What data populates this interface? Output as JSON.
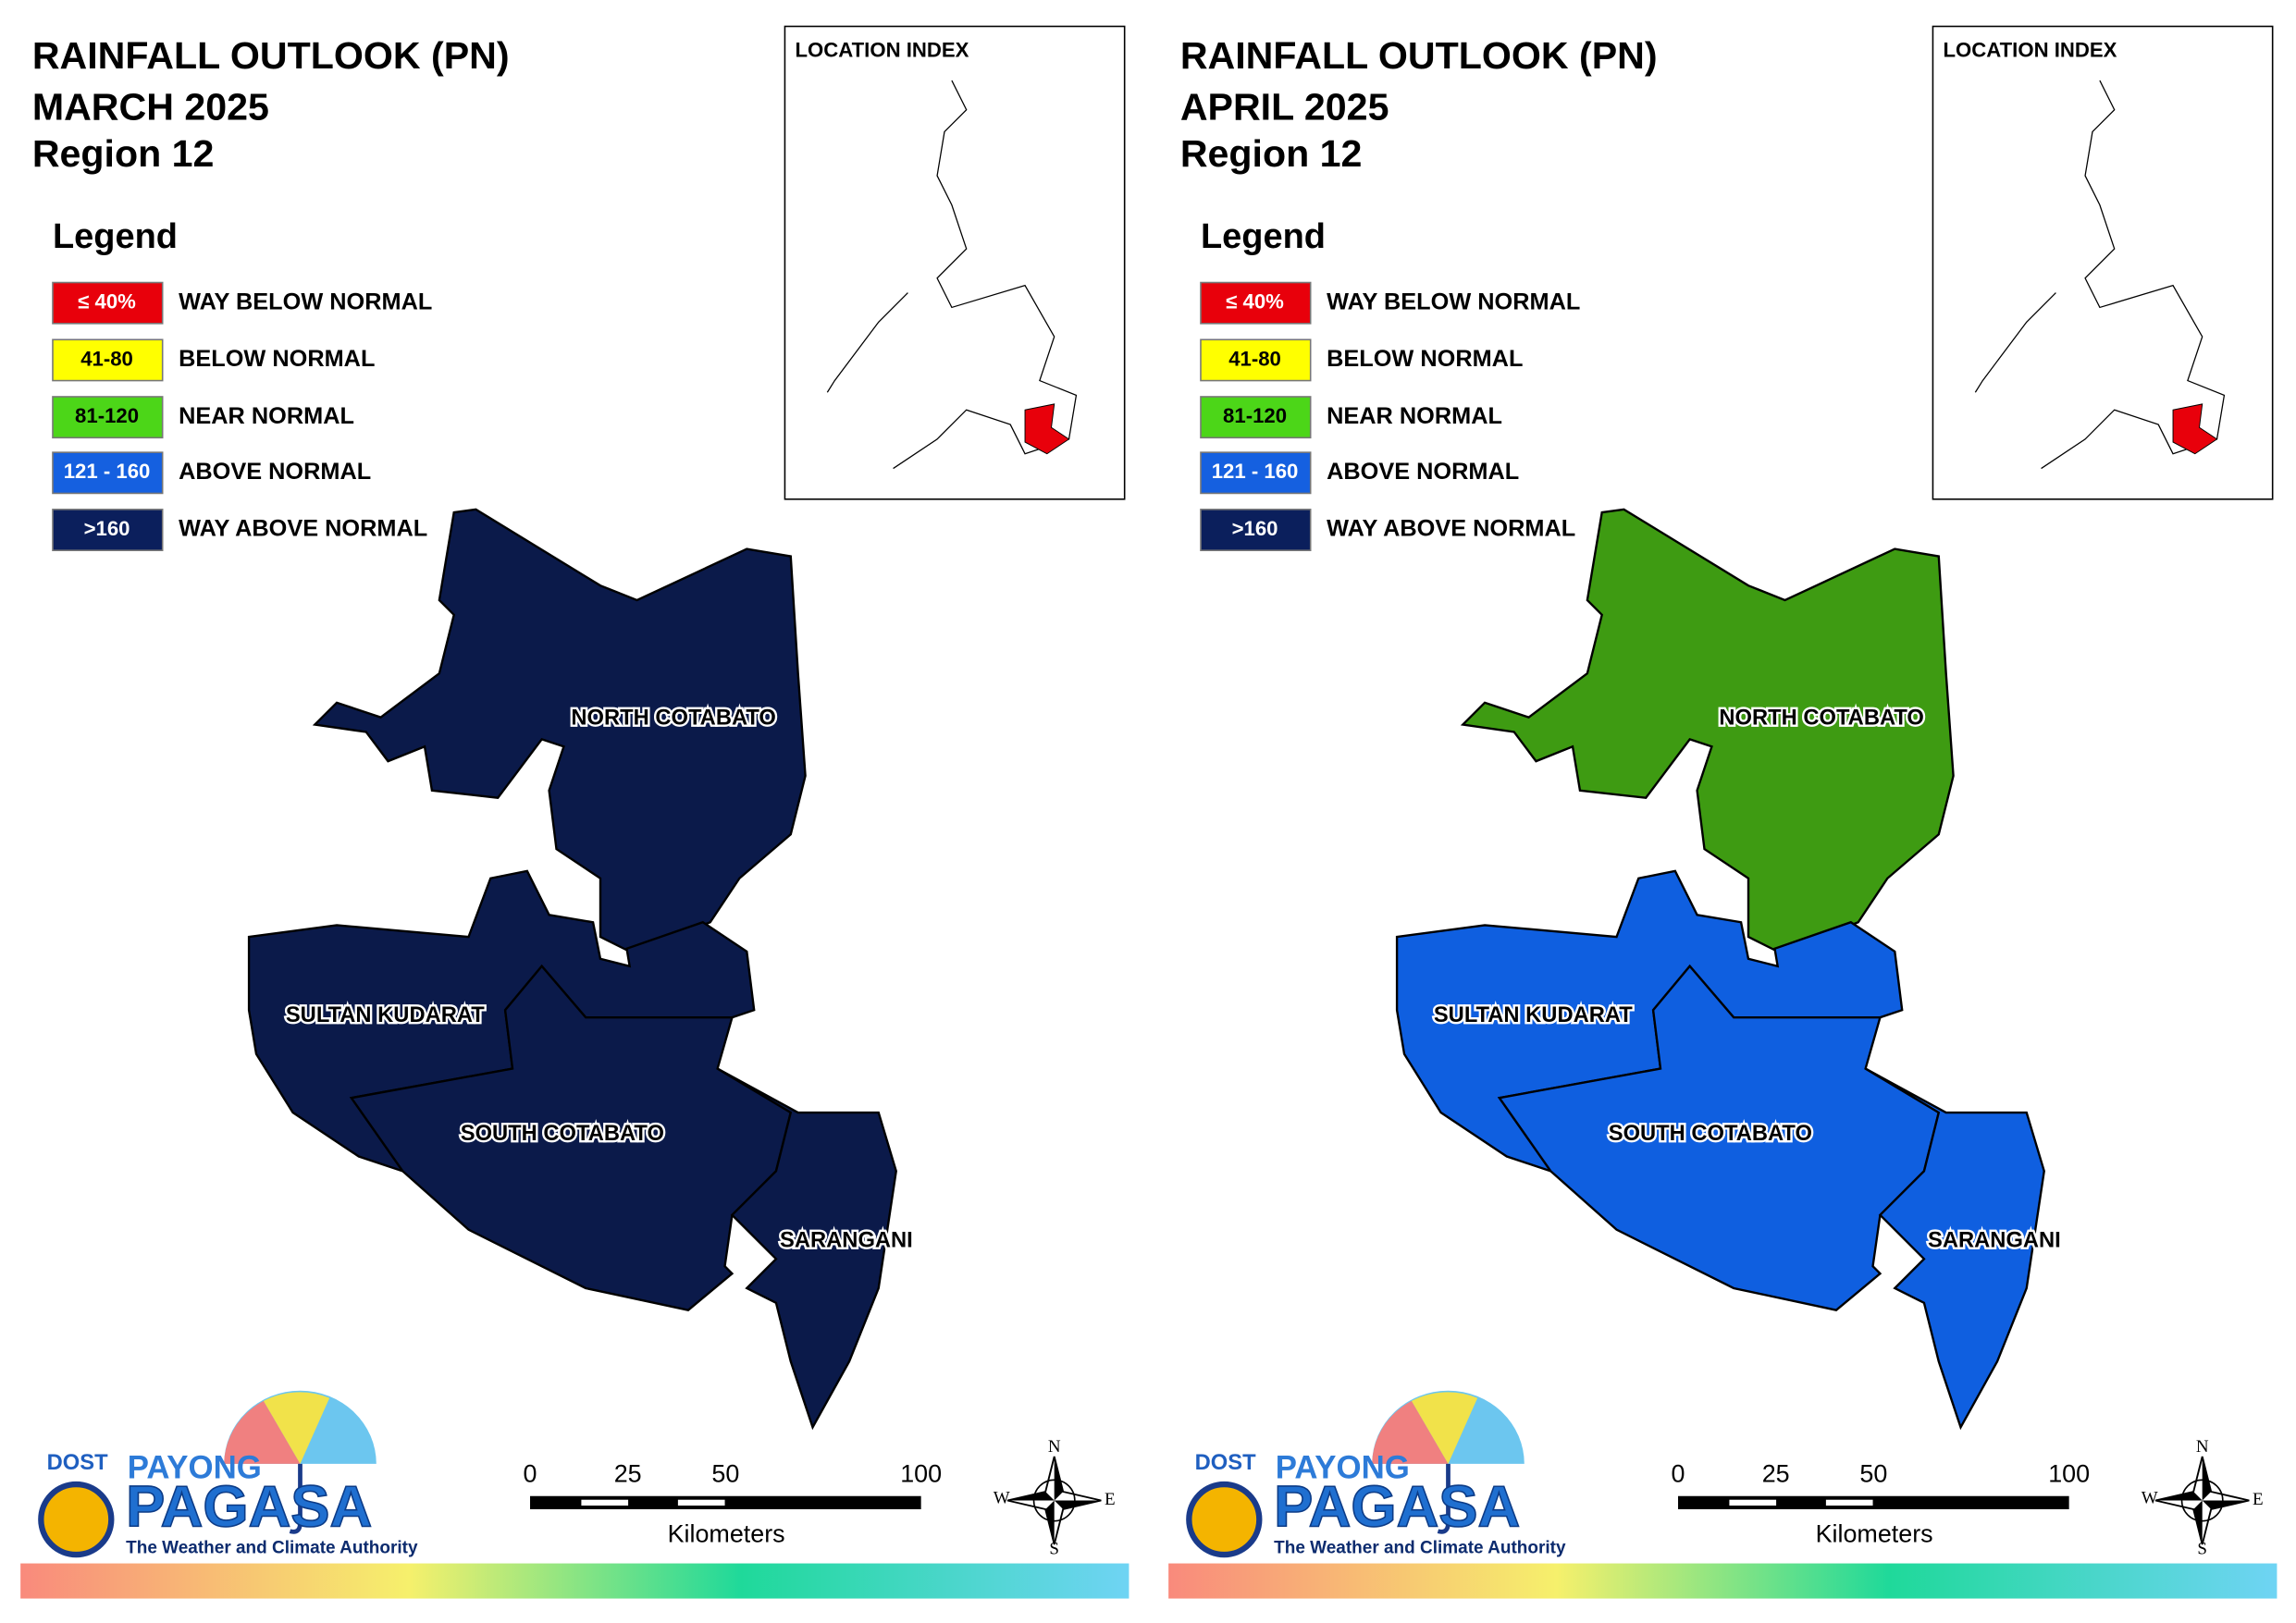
{
  "panels": [
    {
      "title": [
        "RAINFALL OUTLOOK (PN)",
        "MARCH 2025",
        "Region 12"
      ],
      "legend": {
        "title": "Legend",
        "items": [
          {
            "range": "≤ 40%",
            "label": "WAY BELOW NORMAL",
            "color": "#e8000b",
            "text_color": "#ffffff"
          },
          {
            "range": "41-80",
            "label": "BELOW NORMAL",
            "color": "#ffff00",
            "text_color": "#000000"
          },
          {
            "range": "81-120",
            "label": "NEAR NORMAL",
            "color": "#4cd618",
            "text_color": "#000000"
          },
          {
            "range": "121 - 160",
            "label": "ABOVE NORMAL",
            "color": "#1560e0",
            "text_color": "#ffffff"
          },
          {
            "range": ">160",
            "label": "WAY ABOVE NORMAL",
            "color": "#0b1f5c",
            "text_color": "#ffffff"
          }
        ]
      },
      "location_index": "LOCATION INDEX",
      "provinces": [
        {
          "name": "NORTH COTABATO",
          "color": "#0b1a4a"
        },
        {
          "name": "SULTAN KUDARAT",
          "color": "#0b1a4a"
        },
        {
          "name": "SOUTH COTABATO",
          "color": "#0b1a4a"
        },
        {
          "name": "SARANGANI",
          "color": "#0b1a4a"
        }
      ],
      "scale": {
        "ticks": [
          0,
          25,
          50,
          100
        ],
        "unit": "Kilometers"
      },
      "compass": {
        "n": "N",
        "e": "E",
        "s": "S",
        "w": "W"
      },
      "logo": {
        "agency": "DOST",
        "brand_top": "PAYONG",
        "brand": "PAGASA",
        "tagline": "The Weather and Climate Authority"
      }
    },
    {
      "title": [
        "RAINFALL OUTLOOK (PN)",
        "APRIL 2025",
        "Region 12"
      ],
      "legend": {
        "title": "Legend",
        "items": [
          {
            "range": "≤ 40%",
            "label": "WAY BELOW NORMAL",
            "color": "#e8000b",
            "text_color": "#ffffff"
          },
          {
            "range": "41-80",
            "label": "BELOW NORMAL",
            "color": "#ffff00",
            "text_color": "#000000"
          },
          {
            "range": "81-120",
            "label": "NEAR NORMAL",
            "color": "#4cd618",
            "text_color": "#000000"
          },
          {
            "range": "121 - 160",
            "label": "ABOVE NORMAL",
            "color": "#1560e0",
            "text_color": "#ffffff"
          },
          {
            "range": ">160",
            "label": "WAY ABOVE NORMAL",
            "color": "#0b1f5c",
            "text_color": "#ffffff"
          }
        ]
      },
      "location_index": "LOCATION INDEX",
      "provinces": [
        {
          "name": "NORTH COTABATO",
          "color": "#3e9b12"
        },
        {
          "name": "SULTAN KUDARAT",
          "color": "#0f5fe0"
        },
        {
          "name": "SOUTH COTABATO",
          "color": "#0f5fe0"
        },
        {
          "name": "SARANGANI",
          "color": "#0f5fe0"
        }
      ],
      "scale": {
        "ticks": [
          0,
          25,
          50,
          100
        ],
        "unit": "Kilometers"
      },
      "compass": {
        "n": "N",
        "e": "E",
        "s": "S",
        "w": "W"
      },
      "logo": {
        "agency": "DOST",
        "brand_top": "PAYONG",
        "brand": "PAGASA",
        "tagline": "The Weather and Climate Authority"
      }
    }
  ]
}
